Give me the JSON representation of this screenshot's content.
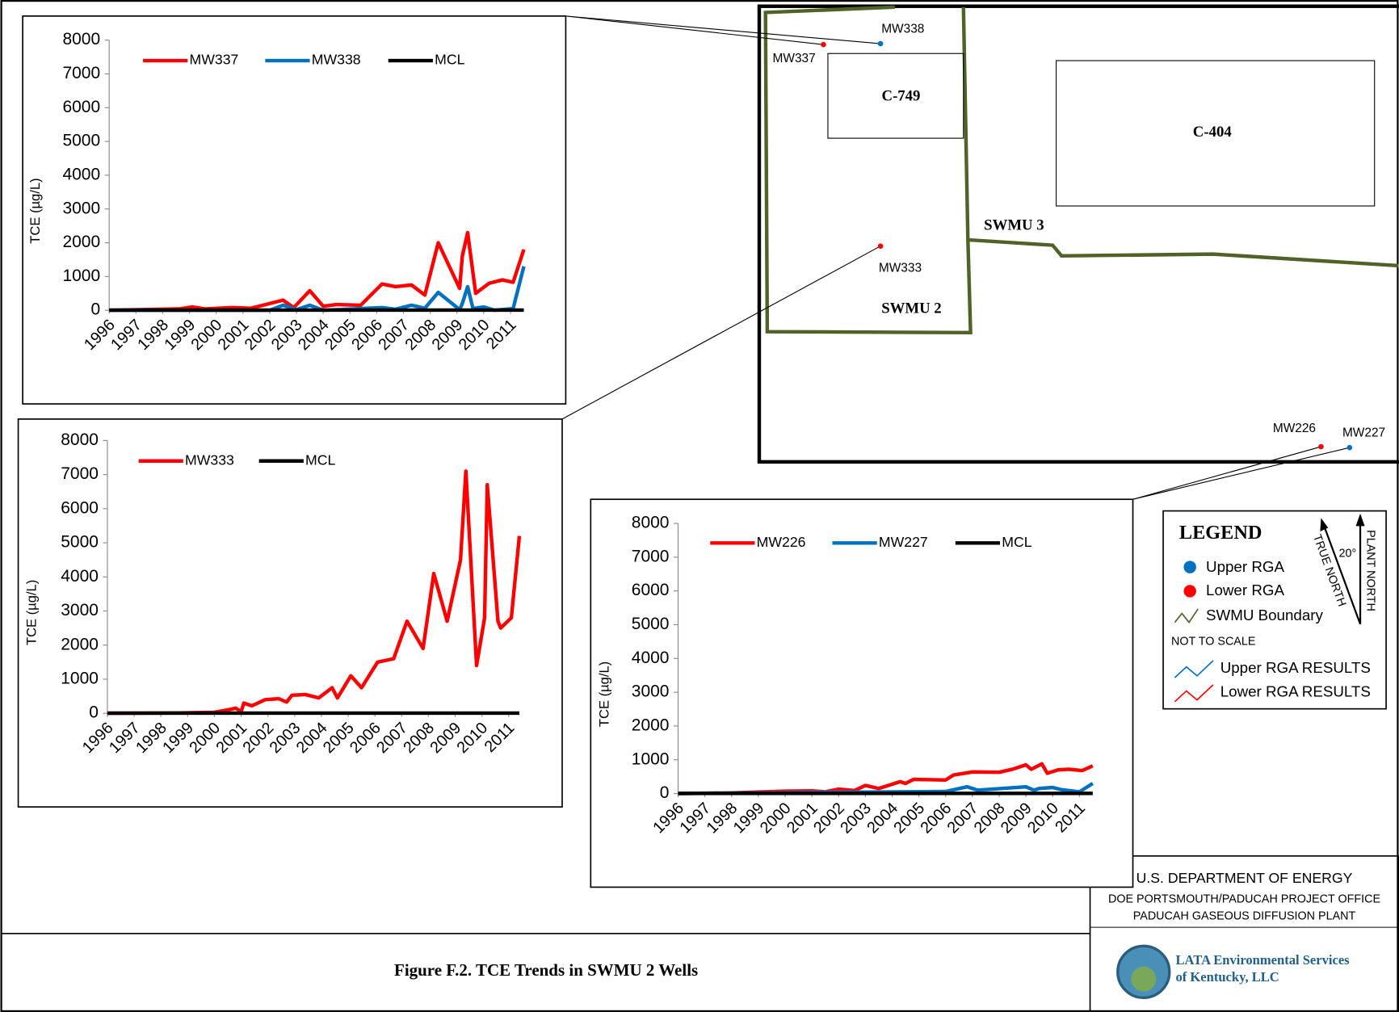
{
  "chart_data": [
    {
      "type": "line",
      "ylabel": "TCE (µg/L)",
      "xlim": [
        1996,
        2011.6
      ],
      "xticks": [
        1996,
        1997,
        1998,
        1999,
        2000,
        2001,
        2002,
        2003,
        2004,
        2005,
        2006,
        2007,
        2008,
        2009,
        2010,
        2011
      ],
      "ylim": [
        0,
        8000
      ],
      "yticks": [
        0,
        1000,
        2000,
        3000,
        4000,
        5000,
        6000,
        7000,
        8000
      ],
      "series": [
        {
          "name": "MW337",
          "color": "#ff0000",
          "x": [
            1996,
            1997.3,
            1998.6,
            1999.1,
            1999.6,
            2000.6,
            2001.3,
            2002.5,
            2002.9,
            2003.5,
            2004.0,
            2004.5,
            2005.4,
            2006.2,
            2006.7,
            2007.3,
            2007.8,
            2008.3,
            2009.1,
            2009.2,
            2009.4,
            2009.7,
            2010.2,
            2010.7,
            2011.1,
            2011.5
          ],
          "values": [
            0,
            20,
            40,
            100,
            40,
            80,
            60,
            300,
            80,
            580,
            120,
            170,
            150,
            780,
            700,
            750,
            450,
            2000,
            650,
            1600,
            2300,
            500,
            800,
            900,
            830,
            1800
          ]
        },
        {
          "name": "MW338",
          "color": "#0070c0",
          "x": [
            1996,
            2002.0,
            2002.5,
            2003.0,
            2003.5,
            2004.0,
            2006.2,
            2006.7,
            2007.3,
            2007.8,
            2008.3,
            2009.1,
            2009.2,
            2009.4,
            2009.6,
            2010.0,
            2010.4,
            2011.1,
            2011.5
          ],
          "values": [
            0,
            0,
            150,
            20,
            150,
            0,
            80,
            30,
            150,
            60,
            530,
            20,
            200,
            700,
            50,
            100,
            0,
            50,
            1300
          ]
        },
        {
          "name": "MCL",
          "color": "#000000",
          "x": [
            1996,
            2011.5
          ],
          "values": [
            5,
            5
          ]
        }
      ]
    },
    {
      "type": "line",
      "ylabel": "TCE (µg/L)",
      "xlim": [
        1996,
        2011.6
      ],
      "xticks": [
        1996,
        1997,
        1998,
        1999,
        2000,
        2001,
        2002,
        2003,
        2004,
        2005,
        2006,
        2007,
        2008,
        2009,
        2010,
        2011
      ],
      "ylim": [
        0,
        8000
      ],
      "yticks": [
        0,
        1000,
        2000,
        3000,
        4000,
        5000,
        6000,
        7000,
        8000
      ],
      "series": [
        {
          "name": "MW333",
          "color": "#ff0000",
          "x": [
            1996,
            1998.7,
            2000.0,
            2000.5,
            2000.8,
            2001.0,
            2001.1,
            2001.4,
            2001.9,
            2002.4,
            2002.7,
            2002.9,
            2003.4,
            2003.9,
            2004.4,
            2004.6,
            2005.1,
            2005.5,
            2006.1,
            2006.7,
            2007.2,
            2007.8,
            2008.2,
            2008.7,
            2009.2,
            2009.4,
            2009.8,
            2010.1,
            2010.2,
            2010.6,
            2010.7,
            2011.1,
            2011.4
          ],
          "values": [
            0,
            10,
            30,
            100,
            150,
            50,
            300,
            220,
            400,
            430,
            330,
            530,
            550,
            450,
            750,
            450,
            1100,
            750,
            1500,
            1600,
            2700,
            1900,
            4100,
            2700,
            4500,
            7100,
            1400,
            2800,
            6700,
            2700,
            2500,
            2800,
            5200
          ]
        },
        {
          "name": "MCL",
          "color": "#000000",
          "x": [
            1996,
            2011.4
          ],
          "values": [
            5,
            5
          ]
        }
      ]
    },
    {
      "type": "line",
      "ylabel": "TCE (µg/L)",
      "xlim": [
        1996,
        2011.6
      ],
      "xticks": [
        1996,
        1997,
        1998,
        1999,
        2000,
        2001,
        2002,
        2003,
        2004,
        2005,
        2006,
        2007,
        2008,
        2009,
        2010,
        2011
      ],
      "ylim": [
        0,
        8000
      ],
      "yticks": [
        0,
        1000,
        2000,
        3000,
        4000,
        5000,
        6000,
        7000,
        8000
      ],
      "series": [
        {
          "name": "MW226",
          "color": "#ff0000",
          "x": [
            1996,
            1998,
            2000,
            2001,
            2001.5,
            2002,
            2002.6,
            2003,
            2003.5,
            2004.3,
            2004.5,
            2004.8,
            2006,
            2006.3,
            2007,
            2008,
            2008.5,
            2009,
            2009.2,
            2009.6,
            2009.8,
            2010,
            2010.2,
            2010.6,
            2011.1,
            2011.5
          ],
          "values": [
            0,
            20,
            70,
            80,
            50,
            130,
            90,
            240,
            150,
            350,
            300,
            420,
            400,
            550,
            640,
            630,
            720,
            850,
            720,
            880,
            600,
            650,
            700,
            720,
            680,
            820
          ]
        },
        {
          "name": "MW227",
          "color": "#0070c0",
          "x": [
            1996,
            2004,
            2006,
            2006.8,
            2007.2,
            2009,
            2009.3,
            2009.5,
            2010,
            2010.3,
            2011,
            2011.5
          ],
          "values": [
            0,
            50,
            60,
            200,
            100,
            200,
            100,
            150,
            180,
            120,
            50,
            300
          ]
        },
        {
          "name": "MCL",
          "color": "#000000",
          "x": [
            1996,
            2011.5
          ],
          "values": [
            5,
            5
          ]
        }
      ]
    }
  ],
  "map": {
    "labels": [
      "MW338",
      "MW337",
      "C-749",
      "C-404",
      "SWMU 3",
      "MW333",
      "SWMU 2",
      "MW226",
      "MW227"
    ]
  },
  "legend": {
    "title": "LEGEND",
    "items": [
      "Upper RGA",
      "Lower RGA",
      "SWMU Boundary",
      "NOT TO SCALE",
      "Upper RGA RESULTS",
      "Lower RGA RESULTS"
    ],
    "true_north": "TRUE NORTH",
    "plant_north": "PLANT NORTH",
    "angle": "20°"
  },
  "title_block": {
    "agency": "U.S. DEPARTMENT OF ENERGY",
    "office": "DOE PORTSMOUTH/PADUCAH PROJECT OFFICE",
    "plant": "PADUCAH GASEOUS DIFFUSION PLANT",
    "company": "LATA Environmental Services",
    "company2": "of Kentucky, LLC"
  },
  "caption": "Figure F.2. TCE Trends in SWMU 2 Wells"
}
